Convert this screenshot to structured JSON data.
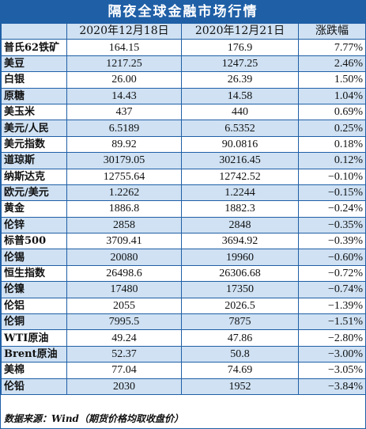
{
  "title": "隔夜全球金融市场行情",
  "headers": [
    "",
    "2020年12月18日",
    "2020年12月21日",
    "涨跌幅"
  ],
  "rows": [
    {
      "name": "普氏62铁矿",
      "prev": "164.15",
      "curr": "176.9",
      "change": "7.77%"
    },
    {
      "name": "美豆",
      "prev": "1217.25",
      "curr": "1247.25",
      "change": "2.46%"
    },
    {
      "name": "白银",
      "prev": "26.00",
      "curr": "26.39",
      "change": "1.50%"
    },
    {
      "name": "原糖",
      "prev": "14.43",
      "curr": "14.58",
      "change": "1.04%"
    },
    {
      "name": "美玉米",
      "prev": "437",
      "curr": "440",
      "change": "0.69%"
    },
    {
      "name": "美元/人民",
      "prev": "6.5189",
      "curr": "6.5352",
      "change": "0.25%"
    },
    {
      "name": "美元指数",
      "prev": "89.92",
      "curr": "90.0816",
      "change": "0.18%"
    },
    {
      "name": "道琼斯",
      "prev": "30179.05",
      "curr": "30216.45",
      "change": "0.12%"
    },
    {
      "name": "纳斯达克",
      "prev": "12755.64",
      "curr": "12742.52",
      "change": "−0.10%"
    },
    {
      "name": "欧元/美元",
      "prev": "1.2262",
      "curr": "1.2244",
      "change": "−0.15%"
    },
    {
      "name": "黄金",
      "prev": "1886.8",
      "curr": "1882.3",
      "change": "−0.24%"
    },
    {
      "name": "伦锌",
      "prev": "2858",
      "curr": "2848",
      "change": "−0.35%"
    },
    {
      "name": "标普500",
      "prev": "3709.41",
      "curr": "3694.92",
      "change": "−0.39%"
    },
    {
      "name": "伦锡",
      "prev": "20080",
      "curr": "19960",
      "change": "−0.60%"
    },
    {
      "name": "恒生指数",
      "prev": "26498.6",
      "curr": "26306.68",
      "change": "−0.72%"
    },
    {
      "name": "伦镍",
      "prev": "17480",
      "curr": "17350",
      "change": "−0.74%"
    },
    {
      "name": "伦铝",
      "prev": "2055",
      "curr": "2026.5",
      "change": "−1.39%"
    },
    {
      "name": "伦铜",
      "prev": "7995.5",
      "curr": "7875",
      "change": "−1.51%"
    },
    {
      "name": "WTI原油",
      "prev": "49.24",
      "curr": "47.86",
      "change": "−2.80%"
    },
    {
      "name": "Brent原油",
      "prev": "52.37",
      "curr": "50.8",
      "change": "−3.00%"
    },
    {
      "name": "美棉",
      "prev": "77.04",
      "curr": "74.69",
      "change": "−3.05%"
    },
    {
      "name": "伦铅",
      "prev": "2030",
      "curr": "1952",
      "change": "−3.84%"
    }
  ],
  "footer": "数据来源：Wind（期货价格均取收盘价）",
  "colors": {
    "header_blue": "#1f5fa6",
    "band_light_blue": "#cfe1f3"
  }
}
